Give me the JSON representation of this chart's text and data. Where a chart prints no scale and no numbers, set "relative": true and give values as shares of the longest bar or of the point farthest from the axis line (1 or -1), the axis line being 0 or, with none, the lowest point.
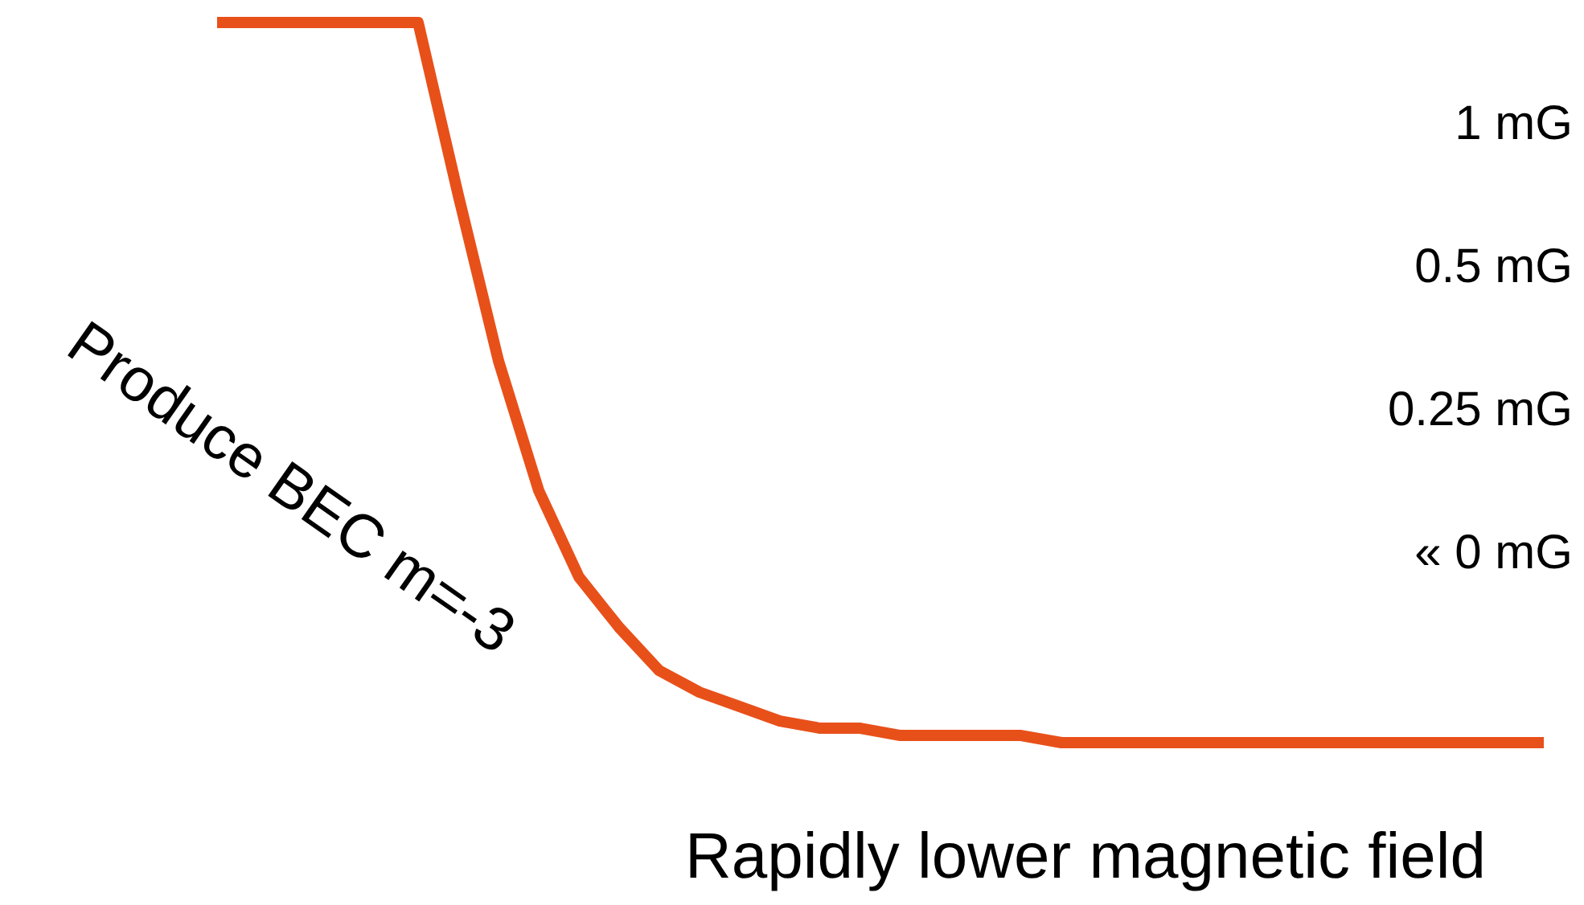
{
  "chart_data": {
    "type": "line",
    "relative": true,
    "xlabel": "Rapidly lower magnetic field",
    "ylabel": "Produce BEC m=-3",
    "annotations": [
      "1 mG",
      "0.5 mG",
      "0.25 mG",
      "« 0 mG"
    ],
    "categories": [
      null,
      null,
      null,
      null,
      null,
      null,
      null,
      null,
      null,
      null,
      null,
      null,
      null,
      null,
      null,
      null,
      null,
      null,
      null,
      null,
      null,
      null,
      null,
      null,
      null,
      null,
      null,
      null,
      null,
      null,
      null,
      null,
      null,
      null
    ],
    "series": [
      {
        "color": "#e8501a",
        "values": [
          1,
          1,
          1,
          1,
          1,
          1,
          0.76,
          0.53,
          0.35,
          0.23,
          0.16,
          0.1,
          0.07,
          0.05,
          0.03,
          0.02,
          0.02,
          0.01,
          0.01,
          0.01,
          0.01,
          0,
          0,
          0,
          0,
          0,
          0,
          0,
          0,
          0,
          0,
          0,
          0,
          0
        ]
      }
    ],
    "legend": false,
    "marker": "none",
    "line_style": "solid"
  }
}
